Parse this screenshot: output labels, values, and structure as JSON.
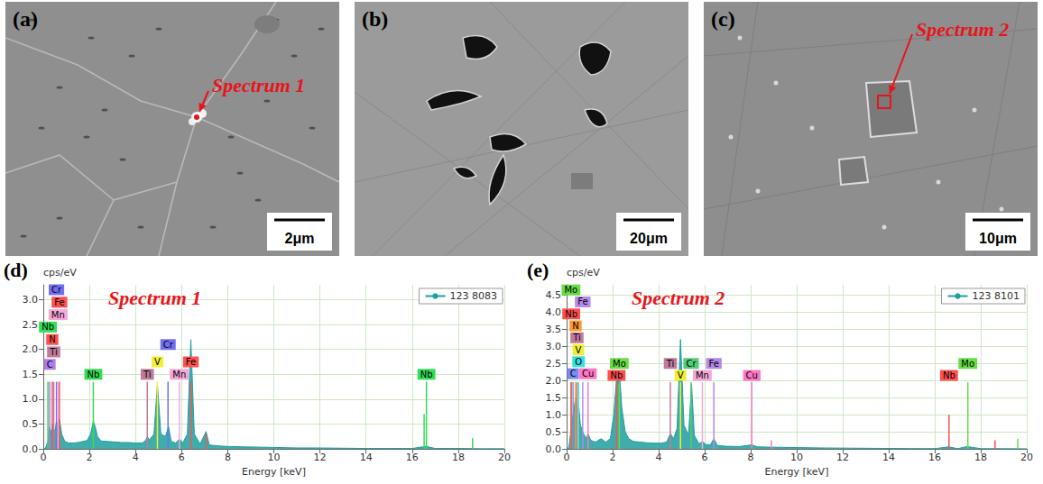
{
  "images": [
    {
      "panel": "(a)",
      "scale_bar": "2μm",
      "annotation": "Spectrum 1"
    },
    {
      "panel": "(b)",
      "scale_bar": "20μm"
    },
    {
      "panel": "(c)",
      "scale_bar": "10μm",
      "annotation": "Spectrum 2"
    }
  ],
  "chart_data": [
    {
      "type": "line",
      "panel": "(d)",
      "title": "Spectrum 1",
      "x_label": "Energy [keV]",
      "y_label": "cps/eV",
      "xlim": [
        0,
        20
      ],
      "xticks": [
        0,
        2,
        4,
        6,
        8,
        10,
        12,
        14,
        16,
        18,
        20
      ],
      "ylim": [
        0,
        3.3
      ],
      "yticks": [
        {
          "value": 0,
          "label": "0.0"
        },
        0.5,
        {
          "value": 1,
          "label": "1.0"
        },
        1.5,
        {
          "value": 2,
          "label": "2.0"
        },
        2.5,
        {
          "value": 3,
          "label": "3.0"
        }
      ],
      "grid": true,
      "legend": "upper right",
      "x": [
        0,
        0.1,
        0.2,
        0.28,
        0.35,
        0.39,
        0.45,
        0.52,
        0.57,
        0.64,
        0.7,
        0.8,
        0.93,
        1.1,
        1.3,
        1.5,
        1.7,
        1.9,
        2.05,
        2.17,
        2.25,
        2.35,
        2.5,
        2.8,
        3.1,
        3.4,
        3.7,
        4.0,
        4.3,
        4.45,
        4.51,
        4.6,
        4.8,
        4.95,
        5.1,
        5.3,
        5.43,
        5.55,
        5.75,
        5.9,
        6.05,
        6.25,
        6.4,
        6.55,
        6.8,
        7.06,
        7.2,
        7.6,
        8,
        9,
        10,
        11,
        12,
        13,
        14,
        15,
        16,
        16.6,
        17,
        18,
        19,
        20
      ],
      "series": [
        {
          "name": "123 8083",
          "color": "#1f9e9e",
          "values": [
            0,
            0.02,
            0.15,
            0.45,
            0.3,
            0.5,
            0.35,
            0.4,
            0.55,
            0.5,
            0.6,
            0.3,
            0.15,
            0.12,
            0.12,
            0.13,
            0.15,
            0.17,
            0.3,
            0.55,
            0.45,
            0.25,
            0.16,
            0.15,
            0.14,
            0.13,
            0.13,
            0.12,
            0.12,
            0.18,
            0.25,
            0.18,
            0.3,
            1.3,
            0.3,
            0.25,
            0.45,
            0.15,
            0.12,
            0.2,
            0.12,
            0.3,
            2.2,
            0.3,
            0.1,
            0.35,
            0.08,
            0.06,
            0.05,
            0.04,
            0.03,
            0.02,
            0.02,
            0.015,
            0.01,
            0.01,
            0.01,
            0.05,
            0.01,
            0.01,
            0.005,
            0.005
          ]
        }
      ],
      "element_lines": [
        {
          "label": "Cr",
          "x": 0.57,
          "y": 1.35,
          "label_y": 3.2,
          "color": "#7070f0"
        },
        {
          "label": "Fe",
          "x": 0.7,
          "y": 1.35,
          "label_y": 2.95,
          "color": "#ff5050"
        },
        {
          "label": "Mn",
          "x": 0.64,
          "y": 1.35,
          "label_y": 2.7,
          "color": "#f5a8d8"
        },
        {
          "label": "Nb",
          "x": 0.2,
          "y": 1.35,
          "label_y": 2.45,
          "color": "#33dd55"
        },
        {
          "label": "N",
          "x": 0.39,
          "y": 1.35,
          "label_y": 2.2,
          "color": "#ff5050"
        },
        {
          "label": "Ti",
          "x": 0.45,
          "y": 1.35,
          "label_y": 1.95,
          "color": "#c07a9c"
        },
        {
          "label": "C",
          "x": 0.28,
          "y": 1.35,
          "label_y": 1.7,
          "color": "#b07ce8"
        },
        {
          "label": "Nb",
          "x": 2.17,
          "y": 1.35,
          "label_y": 1.5,
          "color": "#33dd55"
        },
        {
          "label": "Ti",
          "x": 4.51,
          "y": 1.35,
          "label_y": 1.5,
          "color": "#c07a9c"
        },
        {
          "label": "V",
          "x": 4.95,
          "y": 1.35,
          "label_y": 1.75,
          "color": "#f0f030"
        },
        {
          "label": "Cr",
          "x": 5.41,
          "y": 1.35,
          "label_y": 2.1,
          "color": "#7070f0"
        },
        {
          "label": "Mn",
          "x": 5.9,
          "y": 1.35,
          "label_y": 1.5,
          "color": "#f5a8d8"
        },
        {
          "label": "Fe",
          "x": 6.4,
          "y": 1.35,
          "label_y": 1.75,
          "color": "#ff5050"
        },
        {
          "label": "Nb",
          "x": 16.62,
          "y": 1.35,
          "label_y": 1.5,
          "color": "#33dd55"
        },
        {
          "x": 7.06,
          "y": 0.3,
          "color": "#ff5050"
        },
        {
          "x": 16.52,
          "y": 0.7,
          "color": "#33dd55"
        },
        {
          "x": 18.62,
          "y": 0.22,
          "color": "#33dd55"
        }
      ]
    },
    {
      "type": "line",
      "panel": "(e)",
      "title": "Spectrum 2",
      "x_label": "Energy [keV]",
      "y_label": "cps/eV",
      "xlim": [
        0,
        20
      ],
      "xticks": [
        0,
        2,
        4,
        6,
        8,
        10,
        12,
        14,
        16,
        18,
        20
      ],
      "ylim": [
        0,
        4.8
      ],
      "yticks": [
        {
          "value": 0,
          "label": "0.0"
        },
        0.5,
        {
          "value": 1,
          "label": "1.0"
        },
        1.5,
        {
          "value": 2,
          "label": "2.0"
        },
        2.5,
        {
          "value": 3,
          "label": "3.0"
        },
        3.5,
        {
          "value": 4,
          "label": "4.0"
        },
        4.5
      ],
      "grid": true,
      "legend": "upper right",
      "x": [
        0,
        0.1,
        0.2,
        0.28,
        0.39,
        0.45,
        0.52,
        0.6,
        0.7,
        0.85,
        0.93,
        1.05,
        1.25,
        1.5,
        1.7,
        1.9,
        2.05,
        2.17,
        2.25,
        2.3,
        2.4,
        2.55,
        2.7,
        2.9,
        3.2,
        3.5,
        3.8,
        4.1,
        4.35,
        4.51,
        4.65,
        4.8,
        4.95,
        5.1,
        5.3,
        5.43,
        5.55,
        5.75,
        5.9,
        6.05,
        6.25,
        6.4,
        6.55,
        6.9,
        7.5,
        8.05,
        8.3,
        9,
        10,
        11,
        12,
        13,
        14,
        15,
        16,
        16.6,
        17,
        17.4,
        18,
        19,
        20
      ],
      "series": [
        {
          "name": "123 8101",
          "color": "#1f9e9e",
          "values": [
            0,
            0.05,
            0.6,
            1.0,
            1.5,
            0.9,
            1.3,
            0.7,
            0.5,
            0.3,
            0.45,
            0.25,
            0.2,
            0.3,
            0.2,
            0.3,
            1.0,
            2.05,
            1.9,
            2.2,
            1.2,
            0.5,
            0.3,
            0.22,
            0.2,
            0.18,
            0.17,
            0.17,
            0.2,
            0.45,
            0.3,
            0.6,
            3.2,
            0.7,
            0.4,
            1.9,
            0.4,
            0.15,
            0.22,
            0.13,
            0.12,
            0.3,
            0.1,
            0.08,
            0.07,
            0.12,
            0.06,
            0.05,
            0.04,
            0.03,
            0.025,
            0.02,
            0.015,
            0.012,
            0.01,
            0.06,
            0.01,
            0.07,
            0.01,
            0.008,
            0.005
          ]
        }
      ],
      "element_lines": [
        {
          "label": "Mo",
          "x": 0.19,
          "y": 1.95,
          "label_y": 4.65,
          "color": "#66dd44"
        },
        {
          "label": "Fe",
          "x": 0.7,
          "y": 1.95,
          "label_y": 4.3,
          "color": "#b58ae8"
        },
        {
          "label": "Nb",
          "x": 0.2,
          "y": 1.95,
          "label_y": 3.95,
          "color": "#ff5050"
        },
        {
          "label": "N",
          "x": 0.39,
          "y": 1.95,
          "label_y": 3.6,
          "color": "#ff9933"
        },
        {
          "label": "Ti",
          "x": 0.45,
          "y": 1.95,
          "label_y": 3.25,
          "color": "#c07a9c"
        },
        {
          "label": "V",
          "x": 0.51,
          "y": 1.95,
          "label_y": 2.9,
          "color": "#f0f030"
        },
        {
          "label": "O",
          "x": 0.52,
          "y": 1.95,
          "label_y": 2.55,
          "color": "#33e0e0"
        },
        {
          "label": "C",
          "x": 0.28,
          "y": 1.95,
          "label_y": 2.2,
          "color": "#7b8cf0"
        },
        {
          "label": "Cu",
          "x": 0.93,
          "y": 1.95,
          "label_y": 2.2,
          "color": "#ff77c4"
        },
        {
          "label": "Nb",
          "x": 2.17,
          "y": 1.95,
          "label_y": 2.15,
          "color": "#ff5050"
        },
        {
          "label": "Mo",
          "x": 2.29,
          "y": 1.95,
          "label_y": 2.5,
          "color": "#66dd44"
        },
        {
          "label": "Ti",
          "x": 4.51,
          "y": 1.95,
          "label_y": 2.5,
          "color": "#c07a9c"
        },
        {
          "label": "V",
          "x": 4.95,
          "y": 1.95,
          "label_y": 2.15,
          "color": "#f0f030"
        },
        {
          "label": "Cr",
          "x": 5.41,
          "y": 1.95,
          "label_y": 2.5,
          "color": "#55cc77"
        },
        {
          "label": "Mn",
          "x": 5.9,
          "y": 1.95,
          "label_y": 2.15,
          "color": "#f5a8d8"
        },
        {
          "label": "Fe",
          "x": 6.4,
          "y": 1.95,
          "label_y": 2.5,
          "color": "#b58ae8"
        },
        {
          "label": "Cu",
          "x": 8.05,
          "y": 1.95,
          "label_y": 2.15,
          "color": "#ff77c4"
        },
        {
          "label": "Nb",
          "x": 16.62,
          "y": 1.0,
          "label_y": 2.15,
          "color": "#ff5050"
        },
        {
          "label": "Mo",
          "x": 17.44,
          "y": 1.95,
          "label_y": 2.5,
          "color": "#66dd44"
        },
        {
          "x": 8.9,
          "y": 0.25,
          "color": "#ff77c4"
        },
        {
          "x": 18.62,
          "y": 0.25,
          "color": "#ff5050"
        },
        {
          "x": 19.61,
          "y": 0.3,
          "color": "#66dd44"
        }
      ]
    }
  ]
}
